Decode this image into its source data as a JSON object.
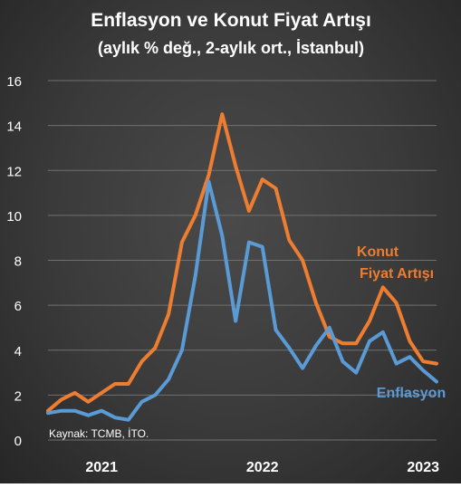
{
  "colors": {
    "konut": "#ED7D31",
    "enflasyon": "#5B9BD5",
    "text": "#FFFFFF",
    "grid": "#707070"
  },
  "chart_data": {
    "type": "line",
    "title": "Enflasyon ve Konut Fiyat Artışı",
    "subtitle": "(aylık % değ., 2-aylık ort., İstanbul)",
    "source": "Kaynak: TCMB, İTO.",
    "ylim": [
      0,
      16
    ],
    "yticks": [
      "0",
      "2",
      "4",
      "6",
      "8",
      "10",
      "12",
      "14",
      "16"
    ],
    "year_labels": [
      "2021",
      "2022",
      "2023"
    ],
    "grid": true,
    "series": [
      {
        "name": "Konut Fiyat Artışı",
        "label_lines": [
          "Konut",
          "Fiyat Artışı"
        ],
        "color": "#ED7D31",
        "values": [
          1.3,
          1.8,
          2.1,
          1.7,
          2.1,
          2.5,
          2.5,
          3.5,
          4.1,
          5.6,
          8.8,
          10.0,
          11.8,
          14.5,
          12.2,
          10.2,
          11.6,
          11.2,
          8.9,
          8.0,
          6.1,
          4.6,
          4.3,
          4.3,
          5.3,
          6.8,
          6.1,
          4.4,
          3.5,
          3.4
        ]
      },
      {
        "name": "Enflasyon",
        "label_lines": [
          "Enflasyon"
        ],
        "color": "#5B9BD5",
        "values": [
          1.2,
          1.3,
          1.3,
          1.1,
          1.3,
          1.0,
          0.9,
          1.7,
          2.0,
          2.7,
          4.0,
          7.3,
          11.5,
          9.1,
          5.3,
          8.8,
          8.6,
          4.9,
          4.1,
          3.2,
          4.2,
          5.0,
          3.5,
          3.0,
          4.4,
          4.8,
          3.4,
          3.7,
          3.1,
          2.6
        ]
      }
    ]
  }
}
